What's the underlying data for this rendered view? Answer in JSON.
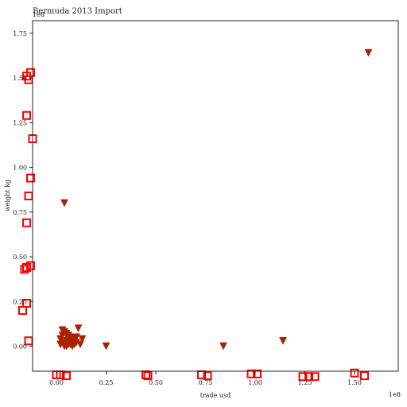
{
  "chart_data": {
    "type": "scatter",
    "title": "Bermuda 2013 Import",
    "xlabel": "trade usd",
    "ylabel": "weight kg",
    "x_offset_label": "1e8",
    "y_offset_label": "1e8",
    "xlim": [
      -0.12,
      1.72
    ],
    "ylim": [
      -0.14,
      1.82
    ],
    "x_ticks": [
      0.0,
      0.25,
      0.5,
      0.75,
      1.0,
      1.25,
      1.5
    ],
    "x_tick_labels": [
      "0.00",
      "0.25",
      "0.50",
      "0.75",
      "1.00",
      "1.25",
      "1.50"
    ],
    "y_ticks": [
      0.0,
      0.25,
      0.5,
      0.75,
      1.0,
      1.25,
      1.5,
      1.75
    ],
    "y_tick_labels": [
      "0.00",
      "0.25",
      "0.50",
      "0.75",
      "1.00",
      "1.25",
      "1.50",
      "1.75"
    ],
    "grid": false,
    "series": [
      {
        "marker": "triangle-down",
        "color": "#aa2200",
        "points": [
          [
            1.57,
            1.64
          ],
          [
            0.04,
            0.8
          ],
          [
            1.14,
            0.03
          ],
          [
            0.84,
            0.0
          ],
          [
            0.25,
            0.0
          ],
          [
            0.11,
            0.1
          ],
          [
            0.13,
            0.04
          ],
          [
            0.1,
            0.02
          ],
          [
            0.12,
            0.01
          ],
          [
            0.09,
            0.04
          ],
          [
            0.08,
            0.05
          ],
          [
            0.07,
            0.02
          ],
          [
            0.06,
            0.04
          ],
          [
            0.05,
            0.03
          ],
          [
            0.03,
            0.02
          ],
          [
            0.02,
            0.01
          ],
          [
            0.04,
            0.08
          ],
          [
            0.05,
            0.07
          ],
          [
            0.03,
            0.09
          ],
          [
            0.06,
            0.01
          ],
          [
            0.08,
            0.0
          ],
          [
            0.09,
            0.01
          ],
          [
            0.02,
            0.04
          ],
          [
            0.04,
            0.0
          ],
          [
            0.06,
            0.06
          ],
          [
            0.07,
            0.01
          ],
          [
            0.03,
            0.06
          ],
          [
            0.05,
            0.0
          ],
          [
            0.1,
            0.05
          ],
          [
            0.08,
            0.03
          ]
        ]
      },
      {
        "marker": "square-open",
        "color": "#ff0000",
        "points": [
          [
            -0.13,
            1.53
          ],
          [
            -0.15,
            1.51
          ],
          [
            -0.14,
            1.49
          ],
          [
            -0.15,
            1.29
          ],
          [
            -0.12,
            1.16
          ],
          [
            -0.13,
            0.94
          ],
          [
            -0.14,
            0.84
          ],
          [
            -0.15,
            0.69
          ],
          [
            -0.13,
            0.45
          ],
          [
            -0.15,
            0.44
          ],
          [
            -0.16,
            0.43
          ],
          [
            -0.15,
            0.24
          ],
          [
            -0.17,
            0.2
          ],
          [
            -0.14,
            0.03
          ],
          [
            0.0,
            -0.16
          ],
          [
            0.02,
            -0.16
          ],
          [
            0.05,
            -0.165
          ],
          [
            0.45,
            -0.16
          ],
          [
            0.46,
            -0.165
          ],
          [
            0.73,
            -0.16
          ],
          [
            0.76,
            -0.165
          ],
          [
            0.98,
            -0.155
          ],
          [
            1.01,
            -0.155
          ],
          [
            1.24,
            -0.17
          ],
          [
            1.27,
            -0.17
          ],
          [
            1.3,
            -0.17
          ],
          [
            1.5,
            -0.15
          ],
          [
            1.55,
            -0.165
          ]
        ]
      }
    ]
  }
}
